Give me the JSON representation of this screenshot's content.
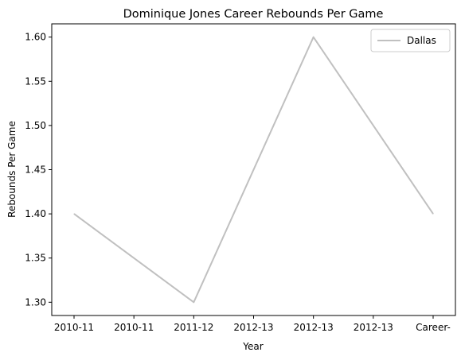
{
  "chart_data": {
    "type": "line",
    "title": "Dominique Jones Career Rebounds Per Game",
    "xlabel": "Year",
    "ylabel": "Rebounds Per Game",
    "x": [
      "2010-11",
      "2010-11",
      "2011-12",
      "2012-13",
      "2012-13",
      "2012-13",
      "Career-"
    ],
    "x_tick_labels": [
      "2010-11",
      "2010-11",
      "2011-12",
      "2012-13",
      "2012-13",
      "2012-13",
      "Career-"
    ],
    "y_ticks": [
      "1.30",
      "1.35",
      "1.40",
      "1.45",
      "1.50",
      "1.55",
      "1.60"
    ],
    "ylim": [
      1.285,
      1.615
    ],
    "grid": false,
    "legend_position": "top-right",
    "series": [
      {
        "name": "Dallas",
        "color": "#c0c0c0",
        "points": [
          {
            "x_index": 0,
            "y": 1.4
          },
          {
            "x_index": 2,
            "y": 1.3
          },
          {
            "x_index": 4,
            "y": 1.6
          },
          {
            "x_index": 6,
            "y": 1.4
          }
        ]
      }
    ]
  }
}
